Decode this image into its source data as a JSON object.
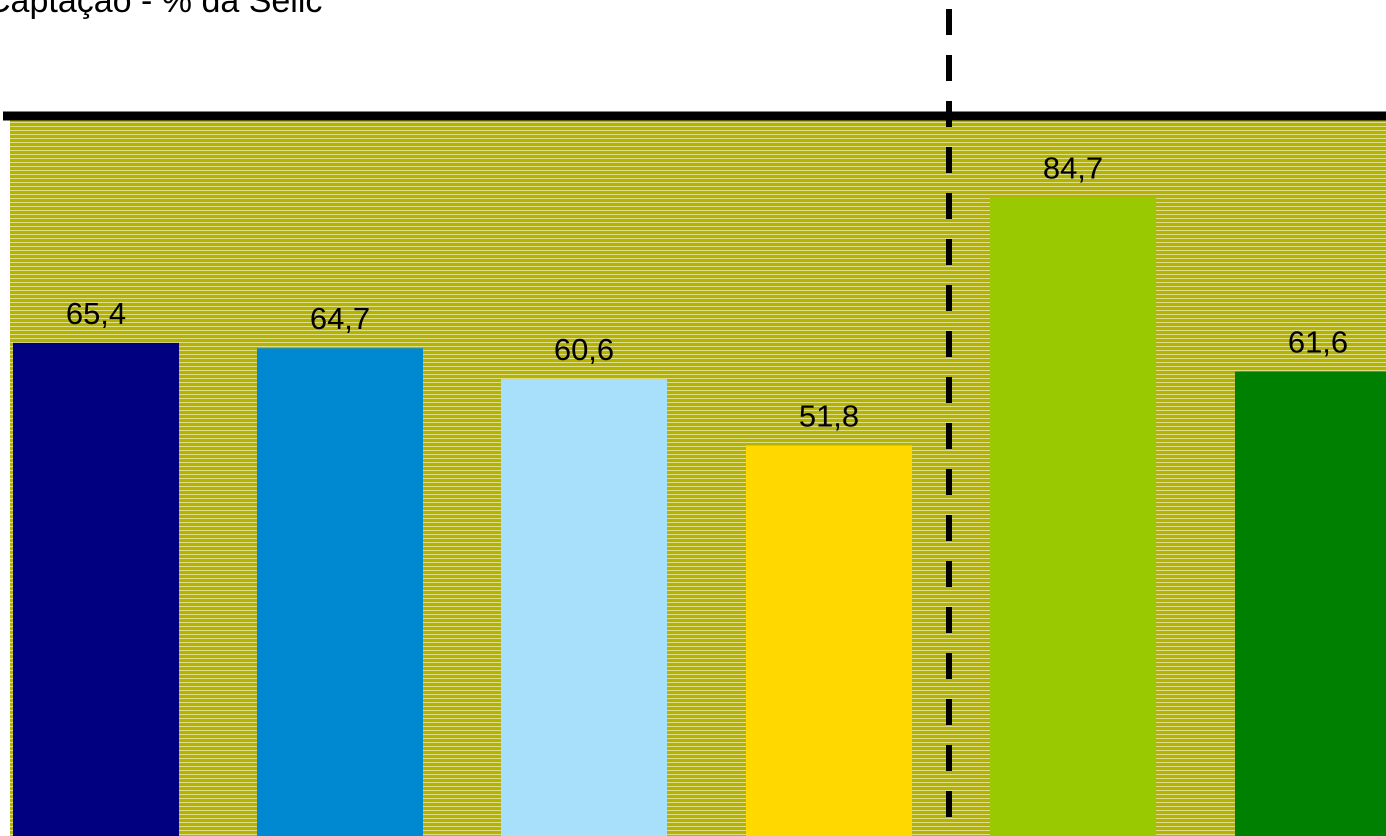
{
  "chart_data": {
    "type": "bar",
    "title": "Captação - % da Selic",
    "xlabel": "",
    "ylabel": "",
    "ylim": [
      0,
      95.5
    ],
    "grid": false,
    "values": [
      65.4,
      64.7,
      60.6,
      51.8,
      84.7,
      61.6
    ],
    "labels": [
      "65,4",
      "64,7",
      "60,6",
      "51,8",
      "84,7",
      "61,6"
    ],
    "colors": [
      "#000080",
      "#0088d0",
      "#a8e0fc",
      "#ffd800",
      "#99c900",
      "#008000"
    ],
    "divider_after_index": 3
  },
  "style": {
    "plot_background": "#b4b400",
    "hatch_color": "#ffffff",
    "axis_color": "#000000"
  }
}
